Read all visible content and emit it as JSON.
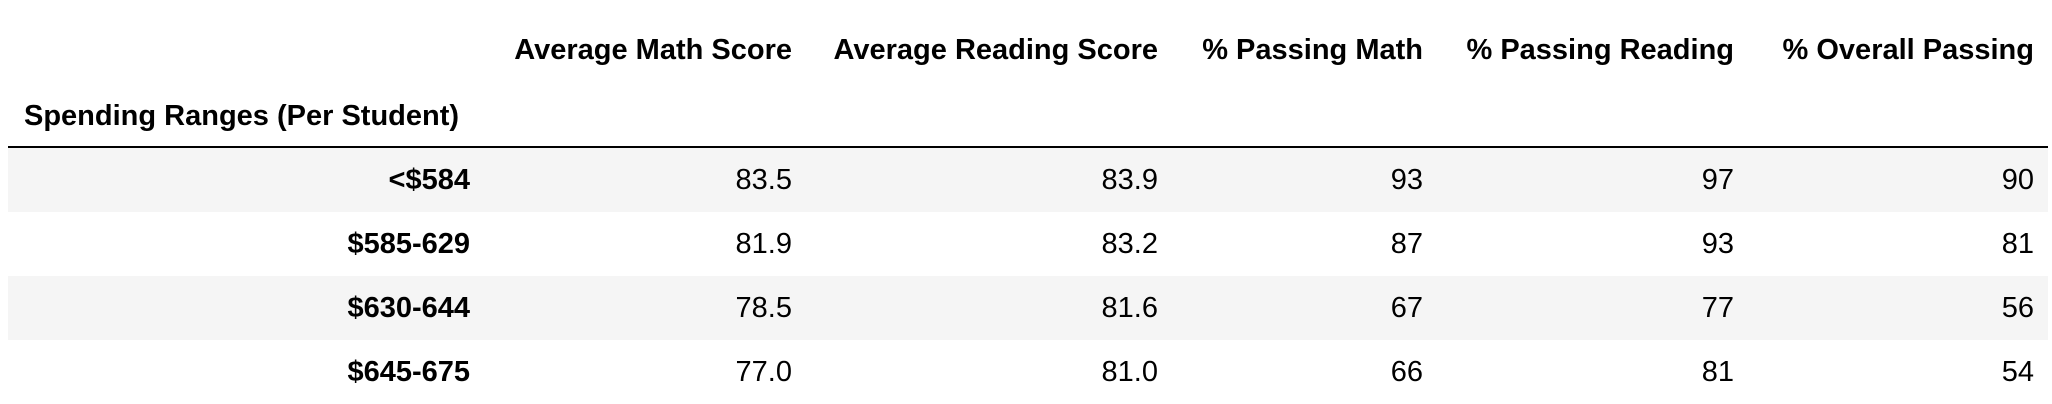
{
  "table": {
    "index_name": "Spending Ranges (Per Student)",
    "columns": [
      "Average Math Score",
      "Average Reading Score",
      "% Passing Math",
      "% Passing Reading",
      "% Overall Passing"
    ],
    "rows": [
      {
        "label": "<$584",
        "values": [
          "83.5",
          "83.9",
          "93",
          "97",
          "90"
        ]
      },
      {
        "label": "$585-629",
        "values": [
          "81.9",
          "83.2",
          "87",
          "93",
          "81"
        ]
      },
      {
        "label": "$630-644",
        "values": [
          "78.5",
          "81.6",
          "67",
          "77",
          "56"
        ]
      },
      {
        "label": "$645-675",
        "values": [
          "77.0",
          "81.0",
          "66",
          "81",
          "54"
        ]
      }
    ]
  },
  "colors": {
    "striped_row": "#f5f5f5",
    "header_rule": "#000000"
  }
}
